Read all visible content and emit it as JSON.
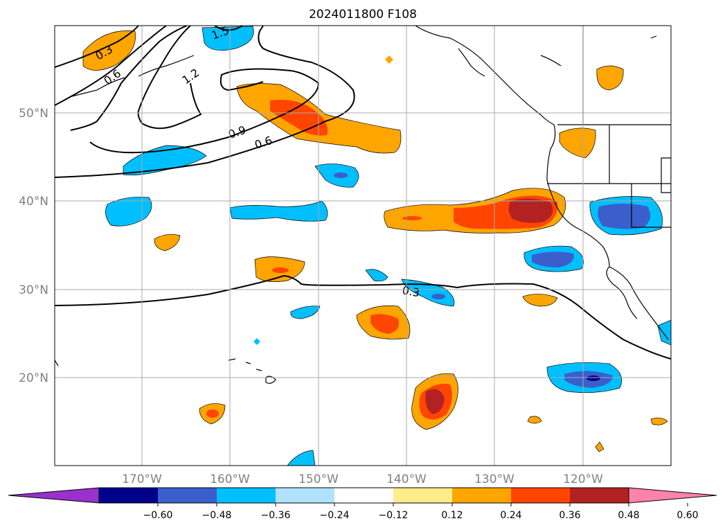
{
  "title": "2024011800 F108",
  "map": {
    "lat_labels": [
      "50°N",
      "40°N",
      "30°N",
      "20°N"
    ],
    "lon_labels": [
      "170°W",
      "160°W",
      "150°W",
      "140°W",
      "130°W",
      "120°W"
    ],
    "contour_labels": [
      "0.3",
      "0.6",
      "1.5",
      "1.2",
      "0.9",
      "0.6",
      "0.3"
    ]
  },
  "colorbar": {
    "colors": [
      "#9932cc",
      "#00008b",
      "#3a5fcd",
      "#00bfff",
      "#b0e2ff",
      "#ffffff",
      "#ffec8b",
      "#ffa500",
      "#ff4500",
      "#b22222",
      "#ff82ab"
    ],
    "ticks": [
      "−0.60",
      "−0.48",
      "−0.36",
      "−0.24",
      "−0.12",
      "0.12",
      "0.24",
      "0.36",
      "0.48",
      "0.60"
    ]
  }
}
